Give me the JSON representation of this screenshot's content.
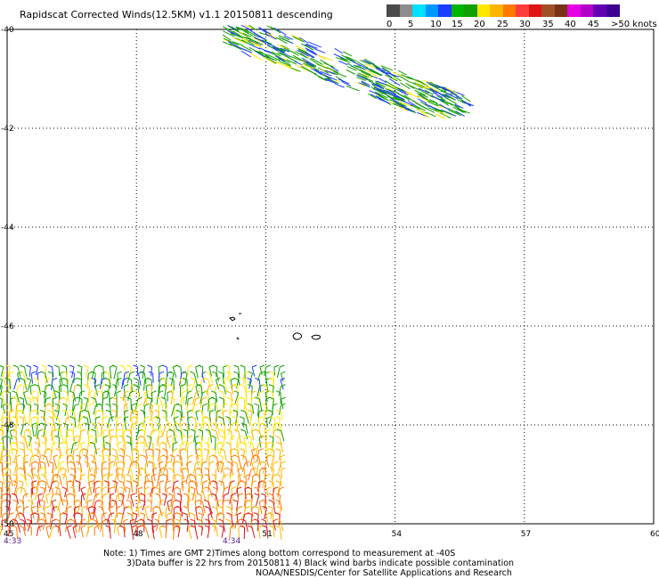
{
  "title": "Rapidscat Corrected Winds(12.5KM) v1.1 20150811 descending",
  "legend": {
    "colors": [
      "#4b4b4b",
      "#8c8c8c",
      "#00e0ff",
      "#0096ff",
      "#1c3cff",
      "#00b400",
      "#11a000",
      "#ffe600",
      "#ffb400",
      "#ff7800",
      "#ff3c3c",
      "#e01414",
      "#a05028",
      "#783214",
      "#e600e6",
      "#b400c8",
      "#6400b4",
      "#3c0090"
    ],
    "labels": [
      "0",
      "5",
      "10",
      "15",
      "20",
      "25",
      "30",
      "35",
      "40",
      "45",
      ">50 knots"
    ]
  },
  "axes": {
    "lat_labels": [
      "-40",
      "-42",
      "-44",
      "-46",
      "-48",
      "-50"
    ],
    "lon_labels": [
      "45",
      "48",
      "51",
      "54",
      "57",
      "60"
    ]
  },
  "time_labels": [
    "4:33",
    "4:34"
  ],
  "notes": {
    "line1": "Note: 1) Times are GMT 2)Times along bottom correspond to measurement at -40S",
    "line2": "3)Data buffer is 22 hrs from 20150811 4) Black wind barbs indicate possible contamination",
    "line3": "NOAA/NESDIS/Center for Satellite Applications and Research"
  },
  "map_features": {
    "swath_north": {
      "lat_range": [
        -40,
        -41.8
      ],
      "lon_range": [
        50,
        55.5
      ],
      "dominant_colors": [
        "#1c3cff",
        "#11a000",
        "#ffe600"
      ]
    },
    "swath_south": {
      "lat_range": [
        -47.2,
        -50
      ],
      "lon_range": [
        45,
        51.5
      ],
      "dominant_colors": [
        "#11a000",
        "#ffe600",
        "#ffb400",
        "#ff7800",
        "#e01414"
      ]
    }
  }
}
